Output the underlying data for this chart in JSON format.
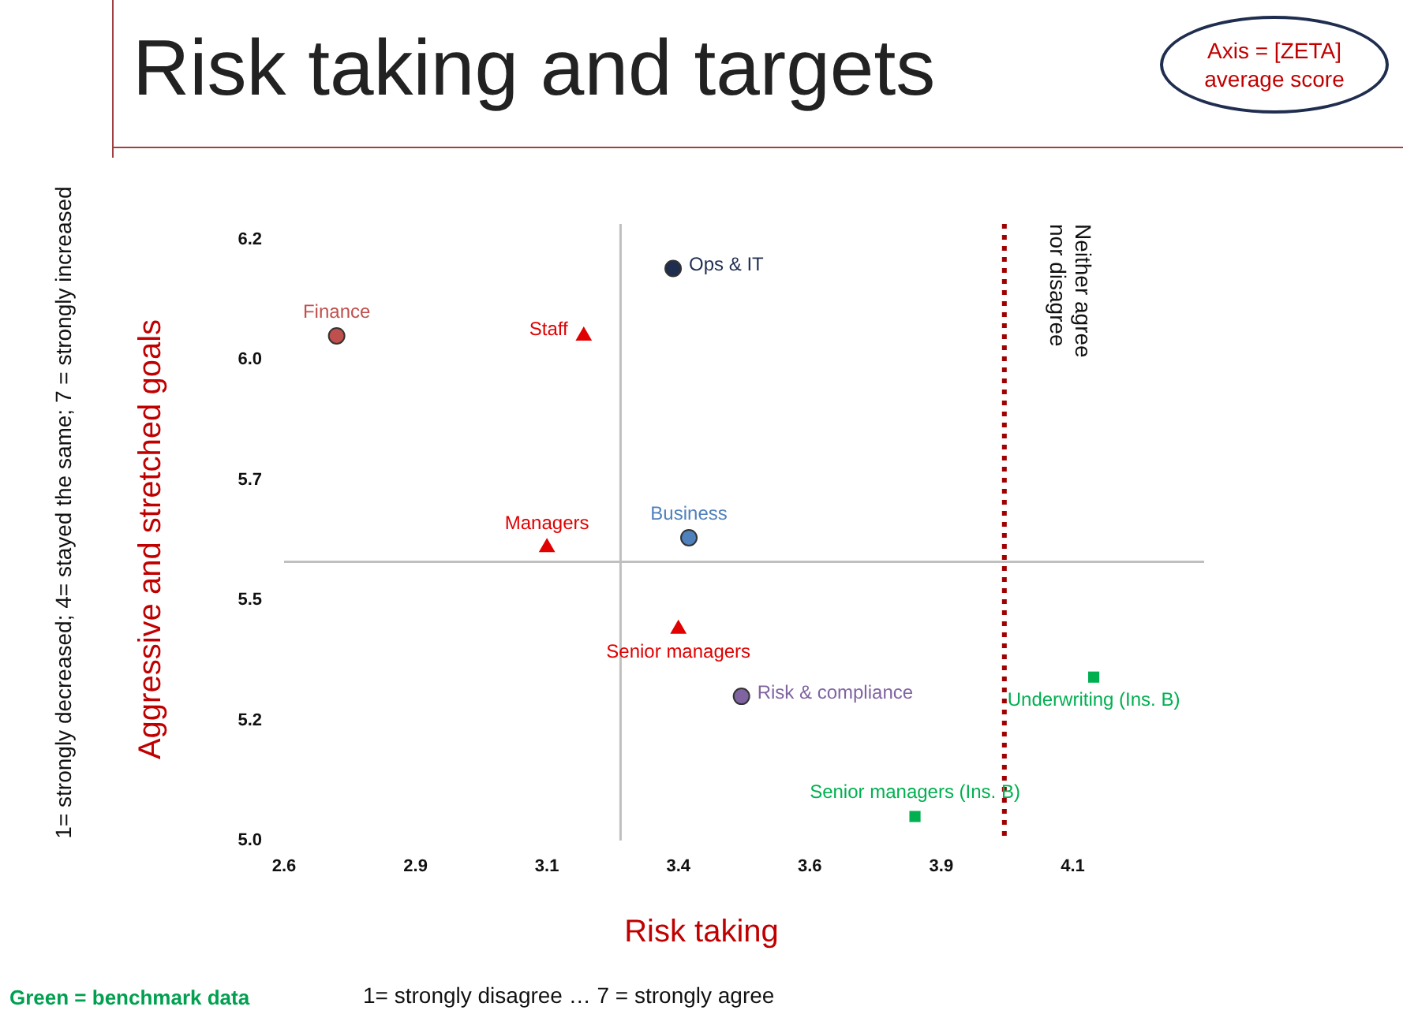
{
  "chart_data": {
    "type": "scatter",
    "title": "Risk taking and targets",
    "xlabel": "Risk taking",
    "ylabel": "Aggressive and stretched goals",
    "xlim": [
      2.6,
      4.35
    ],
    "xticks": [
      2.6,
      {
        "value": 2.85,
        "label": "2.9"
      },
      3.1,
      {
        "value": 3.35,
        "label": "3.4"
      },
      3.6,
      {
        "value": 3.85,
        "label": "3.9"
      },
      4.1
    ],
    "ylim": [
      5.0,
      6.25
    ],
    "yticks": [
      {
        "value": 5.0,
        "label": "5.0"
      },
      {
        "value": 5.25,
        "label": "5.2"
      },
      5.5,
      {
        "value": 5.75,
        "label": "5.7"
      },
      {
        "value": 6.0,
        "label": "6.0"
      },
      {
        "value": 6.25,
        "label": "6.2"
      }
    ],
    "grid": false,
    "legend": false,
    "series": [
      {
        "name": "Finance",
        "color": "#c0504d",
        "marker": "circle",
        "x": [
          2.7
        ],
        "values": [
          6.05
        ]
      },
      {
        "name": "Ops & IT",
        "color": "#1f2d4f",
        "marker": "circle",
        "x": [
          3.34
        ],
        "values": [
          6.19
        ]
      },
      {
        "name": "Staff",
        "color": "#e00000",
        "marker": "triangle",
        "x": [
          3.17
        ],
        "values": [
          6.05
        ]
      },
      {
        "name": "Business",
        "color": "#4f81bd",
        "marker": "circle",
        "x": [
          3.37
        ],
        "values": [
          5.63
        ]
      },
      {
        "name": "Managers",
        "color": "#e00000",
        "marker": "triangle",
        "x": [
          3.1
        ],
        "values": [
          5.61
        ]
      },
      {
        "name": "Senior managers",
        "color": "#e00000",
        "marker": "triangle",
        "x": [
          3.35
        ],
        "values": [
          5.44
        ]
      },
      {
        "name": "Risk & compliance",
        "color": "#8064a2",
        "marker": "circle",
        "x": [
          3.47
        ],
        "values": [
          5.3
        ]
      },
      {
        "name": "Underwriting (Ins. B)",
        "color": "#00b050",
        "marker": "square",
        "x": [
          4.14
        ],
        "values": [
          5.34
        ]
      },
      {
        "name": "Senior managers (Ins. B)",
        "color": "#00b050",
        "marker": "square",
        "x": [
          3.8
        ],
        "values": [
          5.05
        ]
      }
    ],
    "ref_lines": [
      {
        "axis": "x",
        "value": 3.97,
        "label": "Neither agree nor disagree",
        "color": "#a00000",
        "line_style": "dotted"
      },
      {
        "axis": "y",
        "value": 5.58,
        "label": null,
        "color": "#bfbfbf",
        "line_style": "solid"
      },
      {
        "axis": "x",
        "value": 3.24,
        "label": null,
        "color": "#bfbfbf",
        "line_style": "solid"
      }
    ],
    "annotations": [
      "Axis = [ZETA] average score",
      "1= strongly decreased; 4= stayed the same; 7 = strongly increased",
      "Green = benchmark data",
      "1= strongly disagree … 7 = strongly agree"
    ]
  }
}
